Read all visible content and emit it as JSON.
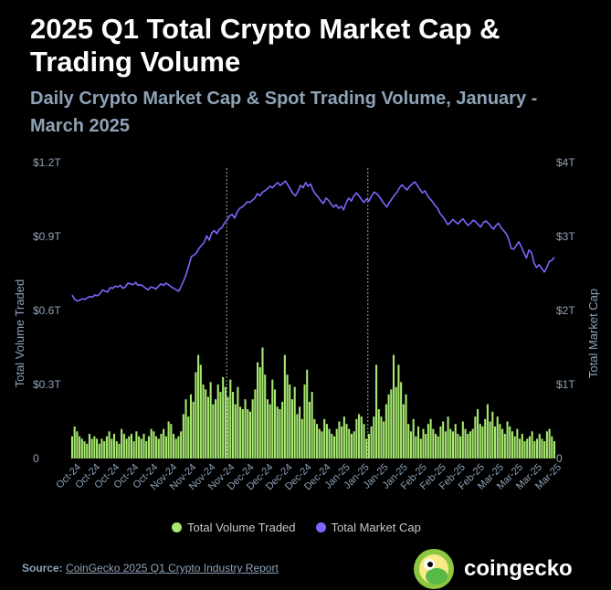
{
  "header": {
    "title": "2025 Q1 Total Crypto Market Cap & Trading Volume",
    "subtitle": "Daily Crypto Market Cap & Spot Trading Volume, January - March 2025"
  },
  "legend": {
    "volume_label": "Total Volume Traded",
    "mcap_label": "Total Market Cap"
  },
  "footer": {
    "source_prefix": "Source:",
    "source_link": "CoinGecko 2025 Q1 Crypto Industry Report",
    "brand": "coingecko"
  },
  "colors": {
    "volume": "#a6e870",
    "mcap": "#7b67ff",
    "axis_text": "#8ea2b7",
    "background": "#000000"
  },
  "chart_data": {
    "type": "bar+line",
    "left_axis": {
      "label": "Total Volume Traded",
      "ticks": [
        "0",
        "$0.3T",
        "$0.6T",
        "$0.9T",
        "$1.2T"
      ],
      "range": [
        0,
        1.2
      ]
    },
    "right_axis": {
      "label": "Total Market Cap",
      "ticks": [
        "0",
        "$1T",
        "$2T",
        "$3T",
        "$4T"
      ],
      "range": [
        0,
        4
      ]
    },
    "x_tick_labels": [
      "Oct-24",
      "Oct-24",
      "Oct-24",
      "Oct-24",
      "Oct-24",
      "Nov-24",
      "Nov-24",
      "Nov-24",
      "Nov-24",
      "Dec-24",
      "Dec-24",
      "Dec-24",
      "Dec-24",
      "Dec-24",
      "Jan-25",
      "Jan-25",
      "Jan-25",
      "Jan-25",
      "Feb-25",
      "Feb-25",
      "Feb-25",
      "Feb-25",
      "Mar-25",
      "Mar-25",
      "Mar-25",
      "Mar-25"
    ],
    "start_date": "2024-10-01",
    "end_date": "2025-03-31",
    "reference_dates": [
      "2024-11-28",
      "2025-01-20"
    ],
    "volume_series": {
      "name": "Total Volume Traded",
      "unit": "T USD",
      "values": [
        0.09,
        0.13,
        0.11,
        0.09,
        0.08,
        0.07,
        0.06,
        0.1,
        0.08,
        0.09,
        0.08,
        0.06,
        0.08,
        0.07,
        0.09,
        0.11,
        0.08,
        0.1,
        0.07,
        0.06,
        0.12,
        0.1,
        0.08,
        0.09,
        0.1,
        0.07,
        0.11,
        0.09,
        0.08,
        0.1,
        0.07,
        0.09,
        0.12,
        0.11,
        0.09,
        0.08,
        0.1,
        0.12,
        0.09,
        0.15,
        0.14,
        0.1,
        0.08,
        0.09,
        0.11,
        0.18,
        0.24,
        0.17,
        0.26,
        0.23,
        0.35,
        0.42,
        0.38,
        0.3,
        0.28,
        0.25,
        0.31,
        0.22,
        0.24,
        0.3,
        0.27,
        0.33,
        0.29,
        0.25,
        0.32,
        0.27,
        0.22,
        0.29,
        0.21,
        0.2,
        0.24,
        0.2,
        0.19,
        0.24,
        0.28,
        0.39,
        0.37,
        0.45,
        0.34,
        0.24,
        0.22,
        0.32,
        0.28,
        0.21,
        0.2,
        0.23,
        0.42,
        0.34,
        0.3,
        0.24,
        0.29,
        0.18,
        0.21,
        0.16,
        0.3,
        0.36,
        0.23,
        0.27,
        0.16,
        0.14,
        0.12,
        0.11,
        0.16,
        0.14,
        0.12,
        0.1,
        0.09,
        0.12,
        0.15,
        0.13,
        0.17,
        0.14,
        0.12,
        0.1,
        0.11,
        0.16,
        0.18,
        0.17,
        0.14,
        0.08,
        0.1,
        0.13,
        0.17,
        0.38,
        0.2,
        0.17,
        0.15,
        0.22,
        0.26,
        0.28,
        0.42,
        0.29,
        0.38,
        0.31,
        0.22,
        0.26,
        0.14,
        0.11,
        0.16,
        0.09,
        0.13,
        0.08,
        0.12,
        0.1,
        0.14,
        0.16,
        0.12,
        0.1,
        0.09,
        0.13,
        0.15,
        0.11,
        0.17,
        0.12,
        0.11,
        0.14,
        0.1,
        0.09,
        0.15,
        0.12,
        0.1,
        0.11,
        0.12,
        0.17,
        0.2,
        0.14,
        0.13,
        0.16,
        0.22,
        0.15,
        0.19,
        0.13,
        0.17,
        0.14,
        0.12,
        0.1,
        0.15,
        0.13,
        0.11,
        0.09,
        0.12,
        0.08,
        0.1,
        0.07,
        0.08,
        0.09,
        0.11,
        0.07,
        0.08,
        0.1,
        0.08,
        0.07,
        0.11,
        0.12,
        0.09,
        0.07
      ]
    },
    "mcap_series": {
      "name": "Total Market Cap",
      "unit": "T USD",
      "values": [
        2.21,
        2.15,
        2.13,
        2.14,
        2.16,
        2.15,
        2.17,
        2.19,
        2.18,
        2.21,
        2.2,
        2.23,
        2.28,
        2.26,
        2.25,
        2.31,
        2.3,
        2.33,
        2.32,
        2.34,
        2.3,
        2.32,
        2.37,
        2.36,
        2.35,
        2.38,
        2.34,
        2.35,
        2.33,
        2.3,
        2.28,
        2.32,
        2.31,
        2.29,
        2.33,
        2.36,
        2.34,
        2.37,
        2.35,
        2.32,
        2.3,
        2.28,
        2.26,
        2.33,
        2.41,
        2.5,
        2.61,
        2.73,
        2.75,
        2.78,
        2.84,
        2.88,
        2.92,
        3.01,
        2.95,
        3.05,
        3.08,
        3.04,
        3.1,
        3.12,
        3.18,
        3.22,
        3.28,
        3.3,
        3.25,
        3.33,
        3.38,
        3.4,
        3.43,
        3.47,
        3.46,
        3.49,
        3.52,
        3.58,
        3.55,
        3.6,
        3.62,
        3.65,
        3.68,
        3.66,
        3.7,
        3.73,
        3.69,
        3.72,
        3.75,
        3.7,
        3.64,
        3.58,
        3.55,
        3.61,
        3.69,
        3.66,
        3.73,
        3.68,
        3.71,
        3.62,
        3.57,
        3.53,
        3.48,
        3.45,
        3.52,
        3.49,
        3.44,
        3.4,
        3.43,
        3.38,
        3.41,
        3.36,
        3.46,
        3.52,
        3.48,
        3.55,
        3.59,
        3.55,
        3.5,
        3.46,
        3.51,
        3.48,
        3.55,
        3.6,
        3.58,
        3.54,
        3.49,
        3.44,
        3.4,
        3.46,
        3.51,
        3.56,
        3.6,
        3.66,
        3.7,
        3.66,
        3.63,
        3.68,
        3.71,
        3.74,
        3.69,
        3.64,
        3.59,
        3.62,
        3.55,
        3.51,
        3.47,
        3.42,
        3.38,
        3.31,
        3.27,
        3.22,
        3.16,
        3.19,
        3.23,
        3.2,
        3.17,
        3.21,
        3.24,
        3.19,
        3.15,
        3.18,
        3.22,
        3.2,
        3.16,
        3.13,
        3.19,
        3.21,
        3.18,
        3.14,
        3.1,
        3.15,
        3.18,
        3.12,
        3.08,
        3.04,
        2.96,
        2.84,
        2.83,
        2.88,
        2.93,
        2.86,
        2.78,
        2.71,
        2.82,
        2.78,
        2.64,
        2.58,
        2.62,
        2.57,
        2.52,
        2.58,
        2.66,
        2.68,
        2.72
      ]
    }
  }
}
